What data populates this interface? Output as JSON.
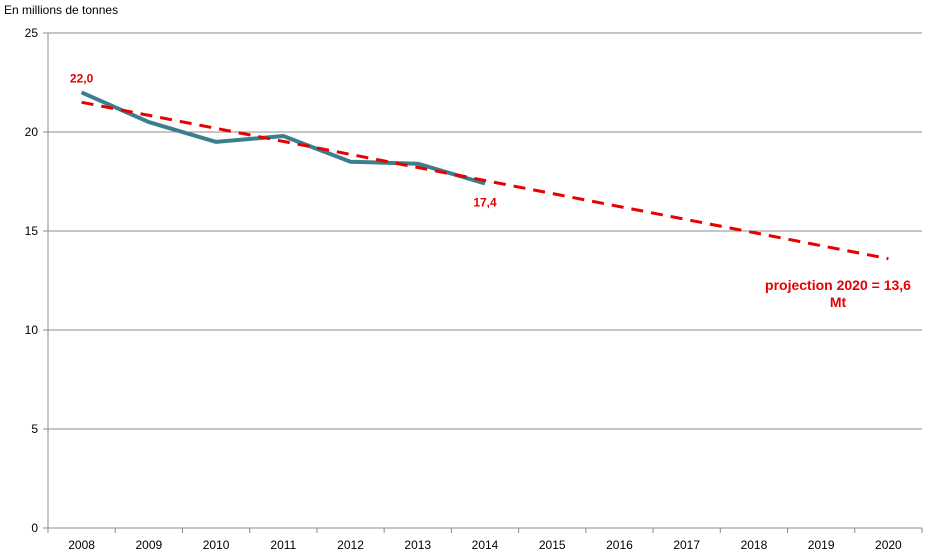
{
  "chart_data": {
    "type": "line",
    "ylabel": "En millions de tonnes",
    "categories": [
      "2008",
      "2009",
      "2010",
      "2011",
      "2012",
      "2013",
      "2014",
      "2015",
      "2016",
      "2017",
      "2018",
      "2019",
      "2020"
    ],
    "ylim": [
      0,
      25
    ],
    "yticks": [
      0,
      5,
      10,
      15,
      20,
      25
    ],
    "grid": true,
    "series": [
      {
        "name": "",
        "style": "solid",
        "color": "#3b7f8c",
        "x": [
          "2008",
          "2009",
          "2010",
          "2011",
          "2012",
          "2013",
          "2014"
        ],
        "values": [
          22.0,
          20.5,
          19.5,
          19.8,
          18.5,
          18.4,
          17.4
        ]
      },
      {
        "name": "",
        "style": "dashed",
        "color": "#e60000",
        "x": [
          "2008",
          "2020"
        ],
        "values": [
          21.5,
          13.6
        ]
      }
    ],
    "annotations": [
      {
        "text": "22,0",
        "x": "2008",
        "value": 22.0,
        "color": "#e60000"
      },
      {
        "text": "17,4",
        "x": "2014",
        "value": 17.4,
        "color": "#e60000"
      }
    ],
    "projection_label": [
      "projection 2020 = 13,6",
      "Mt"
    ],
    "projection_color": "#e60000"
  }
}
